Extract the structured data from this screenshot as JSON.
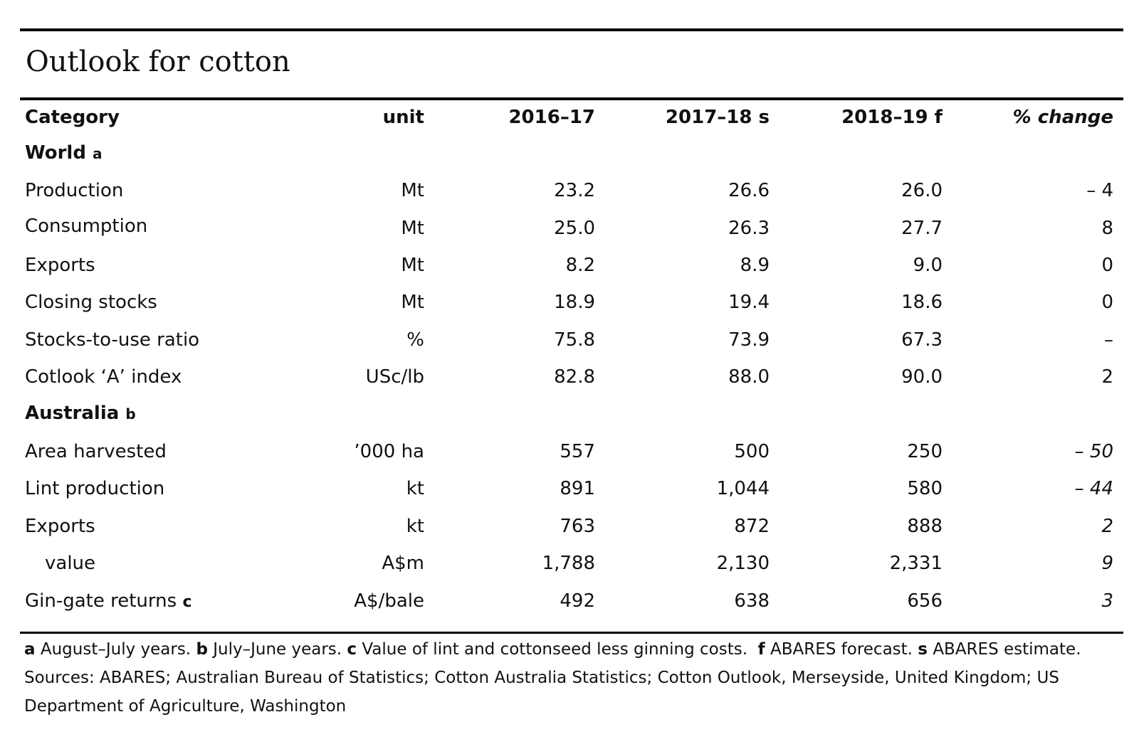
{
  "title": "Outlook for cotton",
  "header": {
    "category": "Category",
    "unit": "unit",
    "y1": "2016–17",
    "y2": "2017–18 s",
    "y3": "2018–19 f",
    "pct": "% change"
  },
  "sections": [
    {
      "label": "World",
      "note": "a",
      "rows": [
        {
          "category": "Production",
          "unit": "Mt",
          "y1": "23.2",
          "y2": "26.6",
          "y3": "26.0",
          "pct": "– 4"
        },
        {
          "category": "Consumption",
          "unit": "Mt",
          "y1": "25.0",
          "y2": "26.3",
          "y3": "27.7",
          "pct": "8"
        },
        {
          "category": "Exports",
          "unit": "Mt",
          "y1": "8.2",
          "y2": "8.9",
          "y3": "9.0",
          "pct": "0"
        },
        {
          "category": "Closing stocks",
          "unit": "Mt",
          "y1": "18.9",
          "y2": "19.4",
          "y3": "18.6",
          "pct": "0"
        },
        {
          "category": "Stocks-to-use ratio",
          "unit": "%",
          "y1": "75.8",
          "y2": "73.9",
          "y3": "67.3",
          "pct": "–"
        },
        {
          "category": "Cotlook ‘A’ index",
          "unit": "USc/lb",
          "y1": "82.8",
          "y2": "88.0",
          "y3": "90.0",
          "pct": "2"
        }
      ]
    },
    {
      "label": "Australia",
      "note": "b",
      "rows": [
        {
          "category": "Area harvested",
          "unit": "’000 ha",
          "y1": "557",
          "y2": "500",
          "y3": "250",
          "pct": "– 50"
        },
        {
          "category": "Lint production",
          "unit": "kt",
          "y1": "891",
          "y2": "1,044",
          "y3": "580",
          "pct": "– 44"
        },
        {
          "category": "Exports",
          "unit": "kt",
          "y1": "763",
          "y2": "872",
          "y3": "888",
          "pct": "2"
        },
        {
          "category": "value",
          "unit": "A$m",
          "y1": "1,788",
          "y2": "2,130",
          "y3": "2,331",
          "pct": "9"
        },
        {
          "category": "Gin-gate returns",
          "note": "c",
          "unit": "A$/bale",
          "y1": "492",
          "y2": "638",
          "y3": "656",
          "pct": "3"
        }
      ]
    }
  ],
  "footnotes": {
    "a_mark": "a",
    "a_text": "August–July years.",
    "b_mark": "b",
    "b_text": "July–June years.",
    "c_mark": "c",
    "c_text": "Value of lint and cottonseed less ginning costs.",
    "f_mark": "f",
    "f_text": "ABARES forecast.",
    "s_mark": "s",
    "s_text": "ABARES estimate.",
    "sources_line1": "Sources: ABARES; Australian Bureau of Statistics; Cotton Australia Statistics; Cotton Outlook, Merseyside, United Kingdom; US",
    "sources_line2": "Department of Agriculture, Washington"
  }
}
